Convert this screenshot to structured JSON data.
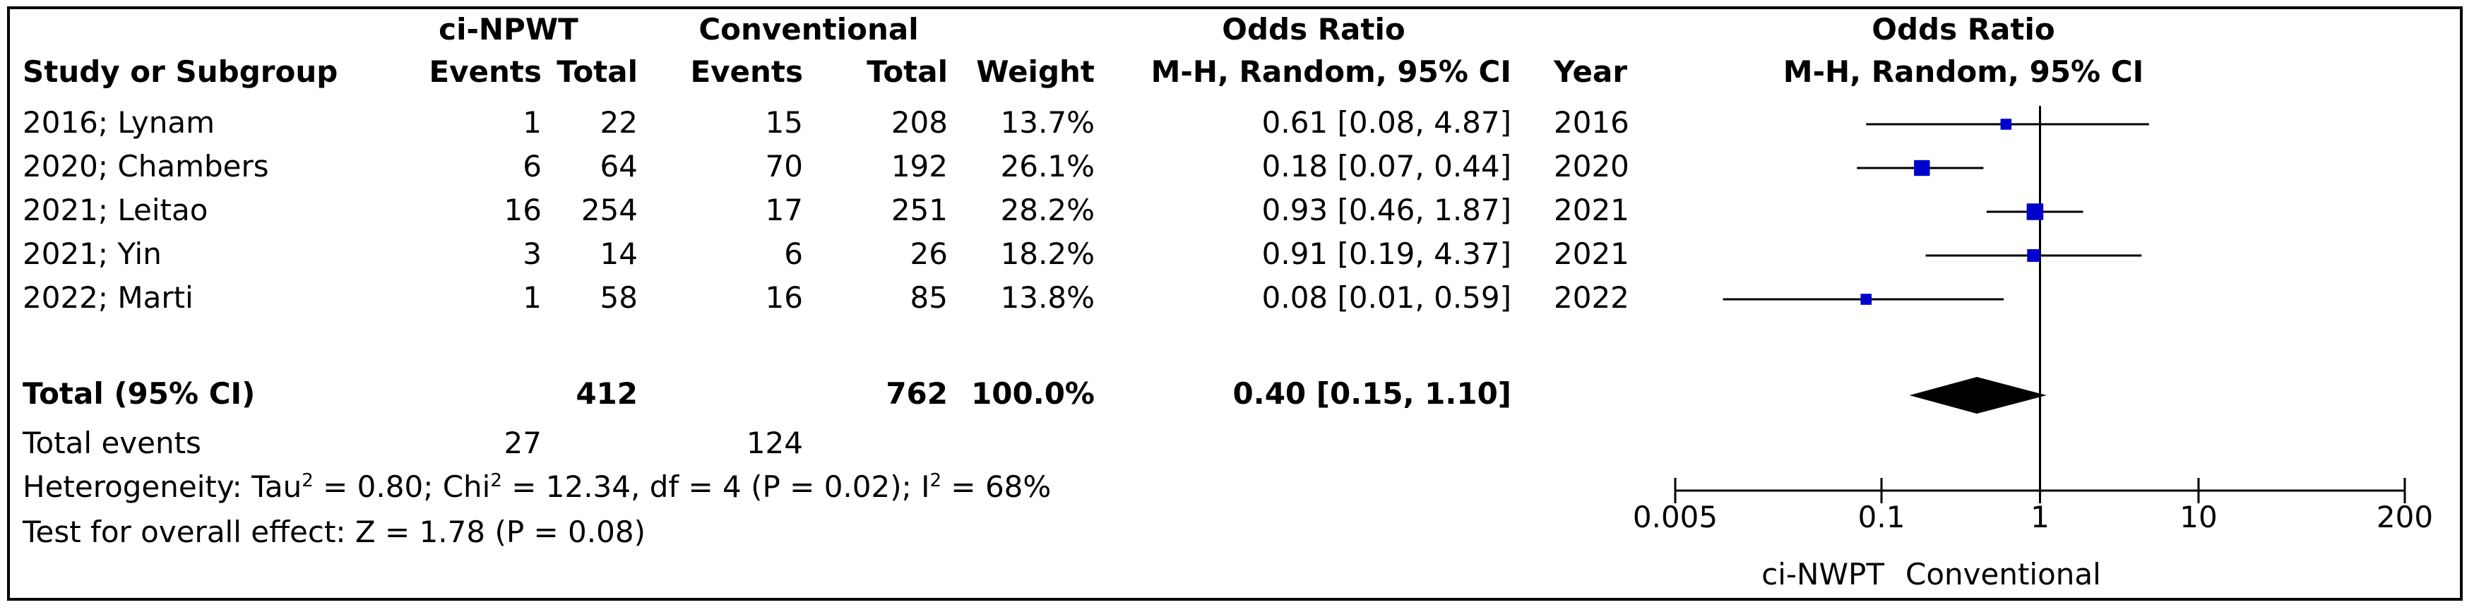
{
  "header": {
    "group1": "ci-NPWT",
    "group2": "Conventional",
    "or_title": "Odds Ratio",
    "study_col": "Study or Subgroup",
    "events": "Events",
    "total": "Total",
    "weight": "Weight",
    "method": "M-H, Random, 95% CI",
    "year": "Year",
    "plot_title": "Odds Ratio",
    "plot_method": "M-H, Random, 95% CI"
  },
  "studies": [
    {
      "name": "2016; Lynam",
      "e1": "1",
      "t1": "22",
      "e2": "15",
      "t2": "208",
      "weight": "13.7%",
      "ci": "0.61 [0.08, 4.87]",
      "year": "2016"
    },
    {
      "name": "2020; Chambers",
      "e1": "6",
      "t1": "64",
      "e2": "70",
      "t2": "192",
      "weight": "26.1%",
      "ci": "0.18 [0.07, 0.44]",
      "year": "2020"
    },
    {
      "name": "2021; Leitao",
      "e1": "16",
      "t1": "254",
      "e2": "17",
      "t2": "251",
      "weight": "28.2%",
      "ci": "0.93 [0.46, 1.87]",
      "year": "2021"
    },
    {
      "name": "2021; Yin",
      "e1": "3",
      "t1": "14",
      "e2": "6",
      "t2": "26",
      "weight": "18.2%",
      "ci": "0.91 [0.19, 4.37]",
      "year": "2021"
    },
    {
      "name": "2022; Marti",
      "e1": "1",
      "t1": "58",
      "e2": "16",
      "t2": "85",
      "weight": "13.8%",
      "ci": "0.08 [0.01, 0.59]",
      "year": "2022"
    }
  ],
  "total": {
    "label": "Total (95% CI)",
    "t1": "412",
    "t2": "762",
    "weight": "100.0%",
    "ci": "0.40 [0.15, 1.10]"
  },
  "events_row": {
    "label": "Total events",
    "e1": "27",
    "e2": "124"
  },
  "heterogeneity": {
    "prefix": "Heterogeneity: Tau",
    "sq1": "2",
    "mid1": " = 0.80; Chi",
    "sq2": "2",
    "mid2": " = 12.34, df = 4 (P = 0.02); I",
    "sq3": "2",
    "end": " = 68%"
  },
  "overall_effect": "Test for overall effect: Z = 1.78 (P = 0.08)",
  "axis_ticks": [
    "0.005",
    "0.1",
    "1",
    "10",
    "200"
  ],
  "favours_left": "ci-NWPT",
  "favours_right": "Conventional",
  "colors": {
    "marker": "#0000cc",
    "diamond": "#000000",
    "line": "#000000"
  },
  "chart_data": {
    "type": "forest",
    "x_scale": "log",
    "xlim": [
      0.005,
      200
    ],
    "x_ticks": [
      0.005,
      0.1,
      1,
      10,
      200
    ],
    "studies": [
      {
        "name": "2016; Lynam",
        "or": 0.61,
        "lower": 0.08,
        "upper": 4.87,
        "weight": 13.7
      },
      {
        "name": "2020; Chambers",
        "or": 0.18,
        "lower": 0.07,
        "upper": 0.44,
        "weight": 26.1
      },
      {
        "name": "2021; Leitao",
        "or": 0.93,
        "lower": 0.46,
        "upper": 1.87,
        "weight": 28.2
      },
      {
        "name": "2021; Yin",
        "or": 0.91,
        "lower": 0.19,
        "upper": 4.37,
        "weight": 18.2
      },
      {
        "name": "2022; Marti",
        "or": 0.08,
        "lower": 0.01,
        "upper": 0.59,
        "weight": 13.8
      }
    ],
    "pooled": {
      "or": 0.4,
      "lower": 0.15,
      "upper": 1.1
    }
  }
}
